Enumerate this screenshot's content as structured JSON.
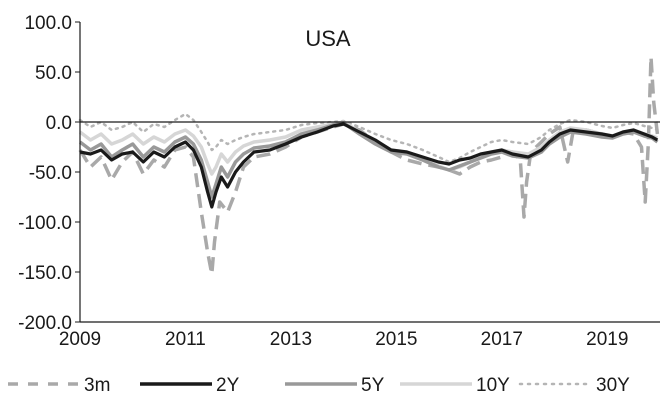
{
  "chart_data": {
    "type": "line",
    "title": "USA",
    "xlabel": "",
    "ylabel": "",
    "xlim": [
      2009,
      2020
    ],
    "ylim": [
      -200,
      100
    ],
    "x_ticks": [
      "2009",
      "2011",
      "2013",
      "2015",
      "2017",
      "2019"
    ],
    "y_ticks": [
      "100.0",
      "50.0",
      "0.0",
      "-50.0",
      "-100.0",
      "-150.0",
      "-200.0"
    ],
    "grid": false,
    "legend_position": "bottom",
    "series": [
      {
        "name": "3m",
        "color": "#a9a9a9",
        "dash": "dash",
        "points": [
          [
            2009.0,
            -28
          ],
          [
            2009.2,
            -45
          ],
          [
            2009.4,
            -35
          ],
          [
            2009.6,
            -58
          ],
          [
            2009.8,
            -40
          ],
          [
            2010.0,
            -30
          ],
          [
            2010.2,
            -52
          ],
          [
            2010.4,
            -38
          ],
          [
            2010.6,
            -45
          ],
          [
            2010.8,
            -28
          ],
          [
            2011.0,
            -25
          ],
          [
            2011.15,
            -35
          ],
          [
            2011.3,
            -90
          ],
          [
            2011.42,
            -130
          ],
          [
            2011.5,
            -152
          ],
          [
            2011.55,
            -120
          ],
          [
            2011.65,
            -80
          ],
          [
            2011.8,
            -90
          ],
          [
            2011.95,
            -70
          ],
          [
            2012.1,
            -45
          ],
          [
            2012.3,
            -35
          ],
          [
            2012.6,
            -32
          ],
          [
            2012.9,
            -25
          ],
          [
            2013.2,
            -15
          ],
          [
            2013.5,
            -10
          ],
          [
            2013.8,
            -5
          ],
          [
            2014.0,
            -2
          ],
          [
            2014.3,
            -8
          ],
          [
            2014.6,
            -20
          ],
          [
            2014.9,
            -30
          ],
          [
            2015.2,
            -38
          ],
          [
            2015.5,
            -42
          ],
          [
            2015.8,
            -45
          ],
          [
            2016.0,
            -48
          ],
          [
            2016.2,
            -52
          ],
          [
            2016.4,
            -45
          ],
          [
            2016.6,
            -40
          ],
          [
            2016.8,
            -38
          ],
          [
            2017.0,
            -35
          ],
          [
            2017.2,
            -30
          ],
          [
            2017.35,
            -38
          ],
          [
            2017.42,
            -95
          ],
          [
            2017.47,
            -60
          ],
          [
            2017.55,
            -30
          ],
          [
            2017.75,
            -20
          ],
          [
            2017.9,
            -12
          ],
          [
            2018.1,
            -5
          ],
          [
            2018.25,
            -40
          ],
          [
            2018.35,
            -10
          ],
          [
            2018.6,
            -8
          ],
          [
            2018.9,
            -12
          ],
          [
            2019.1,
            -15
          ],
          [
            2019.3,
            -10
          ],
          [
            2019.5,
            -12
          ],
          [
            2019.65,
            -25
          ],
          [
            2019.72,
            -80
          ],
          [
            2019.78,
            -20
          ],
          [
            2019.83,
            65
          ],
          [
            2019.88,
            20
          ],
          [
            2019.95,
            -12
          ]
        ]
      },
      {
        "name": "2Y",
        "color": "#1a1a1a",
        "dash": "solid",
        "points": [
          [
            2009.0,
            -30
          ],
          [
            2009.2,
            -32
          ],
          [
            2009.4,
            -28
          ],
          [
            2009.6,
            -38
          ],
          [
            2009.8,
            -32
          ],
          [
            2010.0,
            -30
          ],
          [
            2010.2,
            -40
          ],
          [
            2010.4,
            -30
          ],
          [
            2010.6,
            -35
          ],
          [
            2010.8,
            -25
          ],
          [
            2011.0,
            -20
          ],
          [
            2011.15,
            -28
          ],
          [
            2011.3,
            -45
          ],
          [
            2011.42,
            -70
          ],
          [
            2011.5,
            -85
          ],
          [
            2011.58,
            -70
          ],
          [
            2011.68,
            -55
          ],
          [
            2011.8,
            -65
          ],
          [
            2011.95,
            -50
          ],
          [
            2012.1,
            -40
          ],
          [
            2012.3,
            -30
          ],
          [
            2012.6,
            -28
          ],
          [
            2012.9,
            -22
          ],
          [
            2013.2,
            -15
          ],
          [
            2013.5,
            -10
          ],
          [
            2013.8,
            -4
          ],
          [
            2014.0,
            -2
          ],
          [
            2014.3,
            -10
          ],
          [
            2014.6,
            -18
          ],
          [
            2014.9,
            -28
          ],
          [
            2015.2,
            -30
          ],
          [
            2015.5,
            -35
          ],
          [
            2015.8,
            -40
          ],
          [
            2016.0,
            -42
          ],
          [
            2016.2,
            -38
          ],
          [
            2016.4,
            -36
          ],
          [
            2016.6,
            -32
          ],
          [
            2016.8,
            -30
          ],
          [
            2017.0,
            -28
          ],
          [
            2017.2,
            -32
          ],
          [
            2017.5,
            -35
          ],
          [
            2017.75,
            -28
          ],
          [
            2017.9,
            -20
          ],
          [
            2018.1,
            -12
          ],
          [
            2018.3,
            -8
          ],
          [
            2018.6,
            -10
          ],
          [
            2018.9,
            -12
          ],
          [
            2019.1,
            -14
          ],
          [
            2019.3,
            -10
          ],
          [
            2019.5,
            -8
          ],
          [
            2019.7,
            -12
          ],
          [
            2019.85,
            -15
          ],
          [
            2019.95,
            -18
          ]
        ]
      },
      {
        "name": "5Y",
        "color": "#999999",
        "dash": "solid",
        "points": [
          [
            2009.0,
            -20
          ],
          [
            2009.2,
            -28
          ],
          [
            2009.4,
            -22
          ],
          [
            2009.6,
            -35
          ],
          [
            2009.8,
            -28
          ],
          [
            2010.0,
            -22
          ],
          [
            2010.2,
            -35
          ],
          [
            2010.4,
            -25
          ],
          [
            2010.6,
            -30
          ],
          [
            2010.8,
            -20
          ],
          [
            2011.0,
            -15
          ],
          [
            2011.15,
            -22
          ],
          [
            2011.3,
            -38
          ],
          [
            2011.42,
            -60
          ],
          [
            2011.5,
            -75
          ],
          [
            2011.58,
            -62
          ],
          [
            2011.68,
            -45
          ],
          [
            2011.8,
            -55
          ],
          [
            2011.95,
            -40
          ],
          [
            2012.1,
            -32
          ],
          [
            2012.3,
            -26
          ],
          [
            2012.6,
            -24
          ],
          [
            2012.9,
            -20
          ],
          [
            2013.2,
            -12
          ],
          [
            2013.5,
            -8
          ],
          [
            2013.8,
            -3
          ],
          [
            2014.0,
            -1
          ],
          [
            2014.3,
            -12
          ],
          [
            2014.6,
            -22
          ],
          [
            2014.9,
            -30
          ],
          [
            2015.2,
            -32
          ],
          [
            2015.5,
            -38
          ],
          [
            2015.8,
            -45
          ],
          [
            2016.0,
            -48
          ],
          [
            2016.2,
            -44
          ],
          [
            2016.4,
            -40
          ],
          [
            2016.6,
            -36
          ],
          [
            2016.8,
            -32
          ],
          [
            2017.0,
            -30
          ],
          [
            2017.2,
            -34
          ],
          [
            2017.5,
            -36
          ],
          [
            2017.75,
            -30
          ],
          [
            2017.9,
            -22
          ],
          [
            2018.1,
            -15
          ],
          [
            2018.3,
            -10
          ],
          [
            2018.6,
            -12
          ],
          [
            2018.9,
            -15
          ],
          [
            2019.1,
            -16
          ],
          [
            2019.3,
            -12
          ],
          [
            2019.5,
            -10
          ],
          [
            2019.7,
            -14
          ],
          [
            2019.85,
            -16
          ],
          [
            2019.95,
            -20
          ]
        ]
      },
      {
        "name": "10Y",
        "color": "#d6d6d6",
        "dash": "solid",
        "points": [
          [
            2009.0,
            -10
          ],
          [
            2009.2,
            -18
          ],
          [
            2009.4,
            -12
          ],
          [
            2009.6,
            -22
          ],
          [
            2009.8,
            -18
          ],
          [
            2010.0,
            -12
          ],
          [
            2010.2,
            -22
          ],
          [
            2010.4,
            -15
          ],
          [
            2010.6,
            -20
          ],
          [
            2010.8,
            -12
          ],
          [
            2011.0,
            -8
          ],
          [
            2011.15,
            -14
          ],
          [
            2011.3,
            -25
          ],
          [
            2011.42,
            -42
          ],
          [
            2011.5,
            -52
          ],
          [
            2011.58,
            -45
          ],
          [
            2011.68,
            -32
          ],
          [
            2011.8,
            -40
          ],
          [
            2011.95,
            -30
          ],
          [
            2012.1,
            -24
          ],
          [
            2012.3,
            -20
          ],
          [
            2012.6,
            -18
          ],
          [
            2012.9,
            -15
          ],
          [
            2013.2,
            -8
          ],
          [
            2013.5,
            -5
          ],
          [
            2013.8,
            -2
          ],
          [
            2014.0,
            0
          ],
          [
            2014.3,
            -10
          ],
          [
            2014.6,
            -20
          ],
          [
            2014.9,
            -28
          ],
          [
            2015.2,
            -30
          ],
          [
            2015.5,
            -36
          ],
          [
            2015.8,
            -44
          ],
          [
            2016.0,
            -48
          ],
          [
            2016.2,
            -45
          ],
          [
            2016.4,
            -40
          ],
          [
            2016.6,
            -35
          ],
          [
            2016.8,
            -30
          ],
          [
            2017.0,
            -28
          ],
          [
            2017.2,
            -30
          ],
          [
            2017.5,
            -32
          ],
          [
            2017.75,
            -25
          ],
          [
            2017.9,
            -18
          ],
          [
            2018.1,
            -10
          ],
          [
            2018.3,
            -6
          ],
          [
            2018.6,
            -8
          ],
          [
            2018.9,
            -12
          ],
          [
            2019.1,
            -14
          ],
          [
            2019.3,
            -10
          ],
          [
            2019.5,
            -8
          ],
          [
            2019.7,
            -12
          ],
          [
            2019.85,
            -14
          ],
          [
            2019.95,
            -16
          ]
        ]
      },
      {
        "name": "30Y",
        "color": "#b5b5b5",
        "dash": "dot",
        "points": [
          [
            2009.0,
            2
          ],
          [
            2009.2,
            -5
          ],
          [
            2009.4,
            0
          ],
          [
            2009.6,
            -8
          ],
          [
            2009.8,
            -5
          ],
          [
            2010.0,
            0
          ],
          [
            2010.2,
            -10
          ],
          [
            2010.4,
            -2
          ],
          [
            2010.6,
            -5
          ],
          [
            2010.8,
            2
          ],
          [
            2011.0,
            8
          ],
          [
            2011.15,
            2
          ],
          [
            2011.3,
            -10
          ],
          [
            2011.42,
            -20
          ],
          [
            2011.5,
            -28
          ],
          [
            2011.58,
            -25
          ],
          [
            2011.68,
            -18
          ],
          [
            2011.8,
            -22
          ],
          [
            2011.95,
            -18
          ],
          [
            2012.1,
            -15
          ],
          [
            2012.3,
            -12
          ],
          [
            2012.6,
            -10
          ],
          [
            2012.9,
            -8
          ],
          [
            2013.2,
            -3
          ],
          [
            2013.5,
            -1
          ],
          [
            2013.8,
            0
          ],
          [
            2014.0,
            1
          ],
          [
            2014.3,
            -5
          ],
          [
            2014.6,
            -12
          ],
          [
            2014.9,
            -18
          ],
          [
            2015.2,
            -22
          ],
          [
            2015.5,
            -28
          ],
          [
            2015.8,
            -35
          ],
          [
            2016.0,
            -40
          ],
          [
            2016.2,
            -36
          ],
          [
            2016.4,
            -30
          ],
          [
            2016.6,
            -25
          ],
          [
            2016.8,
            -20
          ],
          [
            2017.0,
            -18
          ],
          [
            2017.2,
            -20
          ],
          [
            2017.5,
            -22
          ],
          [
            2017.75,
            -15
          ],
          [
            2017.9,
            -8
          ],
          [
            2018.1,
            -2
          ],
          [
            2018.3,
            2
          ],
          [
            2018.6,
            0
          ],
          [
            2018.9,
            -4
          ],
          [
            2019.1,
            -6
          ],
          [
            2019.3,
            -3
          ],
          [
            2019.5,
            -1
          ],
          [
            2019.7,
            -4
          ],
          [
            2019.85,
            -6
          ],
          [
            2019.95,
            -8
          ]
        ]
      }
    ]
  }
}
